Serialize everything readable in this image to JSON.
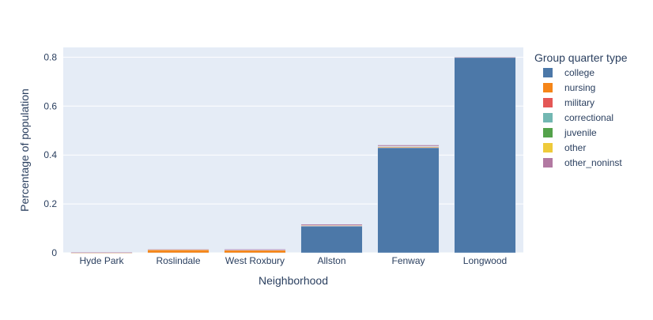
{
  "chart_data": {
    "type": "bar",
    "stacked": true,
    "title": "",
    "xlabel": "Neighborhood",
    "ylabel": "Percentage of population",
    "ylim": [
      0,
      0.84
    ],
    "yticks": [
      0,
      0.2,
      0.4,
      0.6,
      0.8
    ],
    "ytick_labels": [
      "0",
      "0.2",
      "0.4",
      "0.6",
      "0.8"
    ],
    "grid": true,
    "legend_title": "Group quarter type",
    "legend_position": "right",
    "categories": [
      "Hyde Park",
      "Roslindale",
      "West Roxbury",
      "Allston",
      "Fenway",
      "Longwood"
    ],
    "series": [
      {
        "name": "college",
        "color": "#4c78a8",
        "values": [
          0.0,
          0.0,
          0.0,
          0.11,
          0.43,
          0.8
        ]
      },
      {
        "name": "nursing",
        "color": "#f58518",
        "values": [
          0.001,
          0.013,
          0.011,
          0.002,
          0.004,
          0.001
        ]
      },
      {
        "name": "military",
        "color": "#e45756",
        "values": [
          0.0,
          0.0,
          0.0,
          0.0,
          0.0,
          0.0
        ]
      },
      {
        "name": "correctional",
        "color": "#72b7b2",
        "values": [
          0.0,
          0.0,
          0.0,
          0.0,
          0.002,
          0.0
        ]
      },
      {
        "name": "juvenile",
        "color": "#54a24b",
        "values": [
          0.0,
          0.0,
          0.0,
          0.0,
          0.0,
          0.0
        ]
      },
      {
        "name": "other",
        "color": "#eeca3b",
        "values": [
          0.0,
          0.0,
          0.0,
          0.0,
          0.0,
          0.0
        ]
      },
      {
        "name": "other_noninst",
        "color": "#b279a2",
        "values": [
          0.003,
          0.002,
          0.004,
          0.005,
          0.005,
          0.001
        ]
      }
    ]
  }
}
